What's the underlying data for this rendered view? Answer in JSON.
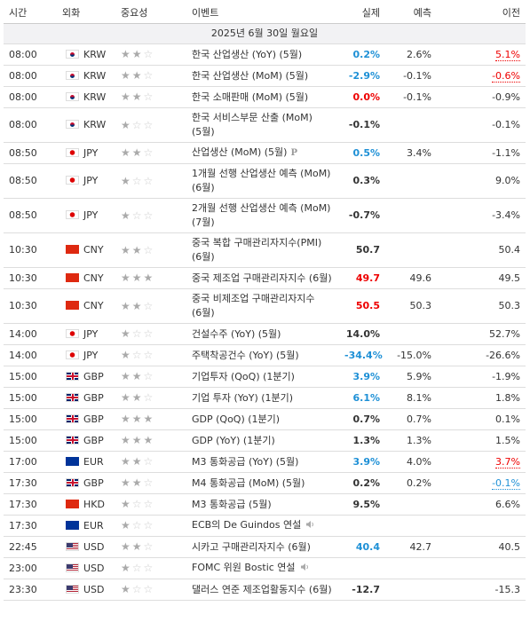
{
  "header": {
    "columns": [
      "시간",
      "외화",
      "중요성",
      "이벤트",
      "실제",
      "예측",
      "이전"
    ]
  },
  "date": "2025년 6월 30일 월요일",
  "rows": [
    {
      "time": "08:00",
      "currency": "KRW",
      "importance": 2,
      "event": "한국 산업생산 (YoY) (5월)",
      "actual": "0.2%",
      "actual_color": "blue",
      "forecast": "2.6%",
      "previous": "5.1%",
      "previous_color": "red",
      "previous_revised": true
    },
    {
      "time": "08:00",
      "currency": "KRW",
      "importance": 2,
      "event": "한국 산업생산 (MoM) (5월)",
      "actual": "-2.9%",
      "actual_color": "blue",
      "forecast": "-0.1%",
      "previous": "-0.6%",
      "previous_color": "red",
      "previous_revised": true
    },
    {
      "time": "08:00",
      "currency": "KRW",
      "importance": 2,
      "event": "한국 소매판매 (MoM) (5월)",
      "actual": "0.0%",
      "actual_color": "red",
      "forecast": "-0.1%",
      "previous": "-0.9%"
    },
    {
      "time": "08:00",
      "currency": "KRW",
      "importance": 1,
      "event": "한국 서비스부문 산출 (MoM) (5월)",
      "actual": "-0.1%",
      "previous": "-0.1%"
    },
    {
      "time": "08:50",
      "currency": "JPY",
      "importance": 2,
      "event": "산업생산 (MoM) (5월)",
      "badge": "P",
      "actual": "0.5%",
      "actual_color": "blue",
      "forecast": "3.4%",
      "previous": "-1.1%"
    },
    {
      "time": "08:50",
      "currency": "JPY",
      "importance": 1,
      "event": "1개월 선행 산업생산 예측 (MoM) (6월)",
      "actual": "0.3%",
      "previous": "9.0%"
    },
    {
      "time": "08:50",
      "currency": "JPY",
      "importance": 1,
      "event": "2개월 선행 산업생산 예측 (MoM) (7월)",
      "actual": "-0.7%",
      "previous": "-3.4%"
    },
    {
      "time": "10:30",
      "currency": "CNY",
      "importance": 2,
      "event": "중국 복합 구매관리자지수(PMI) (6월)",
      "actual": "50.7",
      "previous": "50.4"
    },
    {
      "time": "10:30",
      "currency": "CNY",
      "importance": 3,
      "event": "중국 제조업 구매관리자지수 (6월)",
      "actual": "49.7",
      "actual_color": "red",
      "forecast": "49.6",
      "previous": "49.5"
    },
    {
      "time": "10:30",
      "currency": "CNY",
      "importance": 2,
      "event": "중국 비제조업 구매관리자지수 (6월)",
      "actual": "50.5",
      "actual_color": "red",
      "forecast": "50.3",
      "previous": "50.3"
    },
    {
      "time": "14:00",
      "currency": "JPY",
      "importance": 1,
      "event": "건설수주 (YoY) (5월)",
      "actual": "14.0%",
      "previous": "52.7%"
    },
    {
      "time": "14:00",
      "currency": "JPY",
      "importance": 1,
      "event": "주택착공건수 (YoY) (5월)",
      "actual": "-34.4%",
      "actual_color": "blue",
      "forecast": "-15.0%",
      "previous": "-26.6%"
    },
    {
      "time": "15:00",
      "currency": "GBP",
      "importance": 2,
      "event": "기업투자 (QoQ) (1분기)",
      "actual": "3.9%",
      "actual_color": "blue",
      "forecast": "5.9%",
      "previous": "-1.9%"
    },
    {
      "time": "15:00",
      "currency": "GBP",
      "importance": 2,
      "event": "기업 투자 (YoY) (1분기)",
      "actual": "6.1%",
      "actual_color": "blue",
      "forecast": "8.1%",
      "previous": "1.8%"
    },
    {
      "time": "15:00",
      "currency": "GBP",
      "importance": 3,
      "event": "GDP (QoQ) (1분기)",
      "actual": "0.7%",
      "forecast": "0.7%",
      "previous": "0.1%"
    },
    {
      "time": "15:00",
      "currency": "GBP",
      "importance": 3,
      "event": "GDP (YoY) (1분기)",
      "actual": "1.3%",
      "forecast": "1.3%",
      "previous": "1.5%"
    },
    {
      "time": "17:00",
      "currency": "EUR",
      "importance": 2,
      "event": "M3 통화공급 (YoY) (5월)",
      "actual": "3.9%",
      "actual_color": "blue",
      "forecast": "4.0%",
      "previous": "3.7%",
      "previous_color": "red",
      "previous_revised": true
    },
    {
      "time": "17:30",
      "currency": "GBP",
      "importance": 2,
      "event": "M4 통화공급 (MoM) (5월)",
      "actual": "0.2%",
      "forecast": "0.2%",
      "previous": "-0.1%",
      "previous_color": "blue",
      "previous_revised": true
    },
    {
      "time": "17:30",
      "currency": "HKD",
      "importance": 1,
      "event": "M3 통화공급 (5월)",
      "actual": "9.5%",
      "previous": "6.6%"
    },
    {
      "time": "17:30",
      "currency": "EUR",
      "importance": 1,
      "event": "ECB의 De Guindos 연설",
      "speech": true
    },
    {
      "time": "22:45",
      "currency": "USD",
      "importance": 2,
      "event": "시카고 구매관리자지수 (6월)",
      "actual": "40.4",
      "actual_color": "blue",
      "forecast": "42.7",
      "previous": "40.5"
    },
    {
      "time": "23:00",
      "currency": "USD",
      "importance": 1,
      "event": "FOMC 위원 Bostic 연설",
      "speech": true
    },
    {
      "time": "23:30",
      "currency": "USD",
      "importance": 1,
      "event": "댈러스 연준 제조업활동지수 (6월)",
      "actual": "-12.7",
      "previous": "-15.3"
    }
  ]
}
